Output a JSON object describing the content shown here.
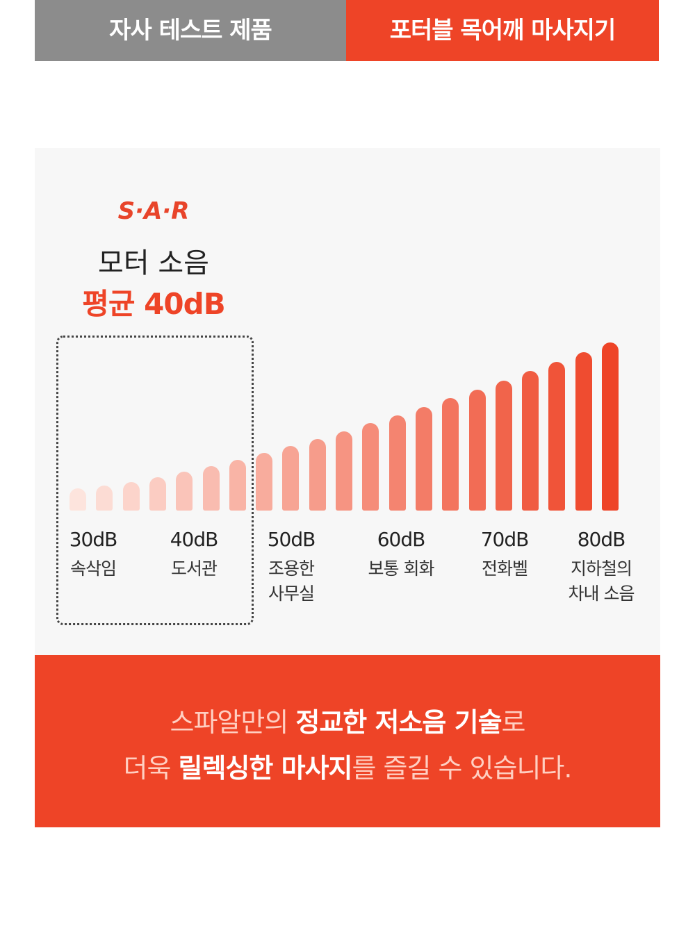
{
  "tabs": [
    "자사 테스트 제품",
    "포터블 목어깨 마사지기"
  ],
  "logo": "S·A·R",
  "heading": {
    "title": "모터 소음",
    "highlight": "평균 40dB"
  },
  "levels": [
    {
      "level": "30dB",
      "desc": [
        "속삭임"
      ]
    },
    {
      "level": "40dB",
      "desc": [
        "도서관"
      ]
    },
    {
      "level": "50dB",
      "desc": [
        "조용한",
        "사무실"
      ]
    },
    {
      "level": "60dB",
      "desc": [
        "보통 회화"
      ]
    },
    {
      "level": "70dB",
      "desc": [
        "전화벨"
      ]
    },
    {
      "level": "80dB",
      "desc": [
        "지하철의",
        "차내 소음"
      ]
    }
  ],
  "bottom": {
    "lines": [
      [
        {
          "text": "스파알만의 ",
          "bold": false
        },
        {
          "text": "정교한 저소음 기술",
          "bold": true
        },
        {
          "text": "로",
          "bold": false
        }
      ],
      [
        {
          "text": "더욱 ",
          "bold": false
        },
        {
          "text": "릴렉싱한 마사지",
          "bold": true
        },
        {
          "text": "를 즐길 수 있습니다.",
          "bold": false
        }
      ]
    ]
  }
}
